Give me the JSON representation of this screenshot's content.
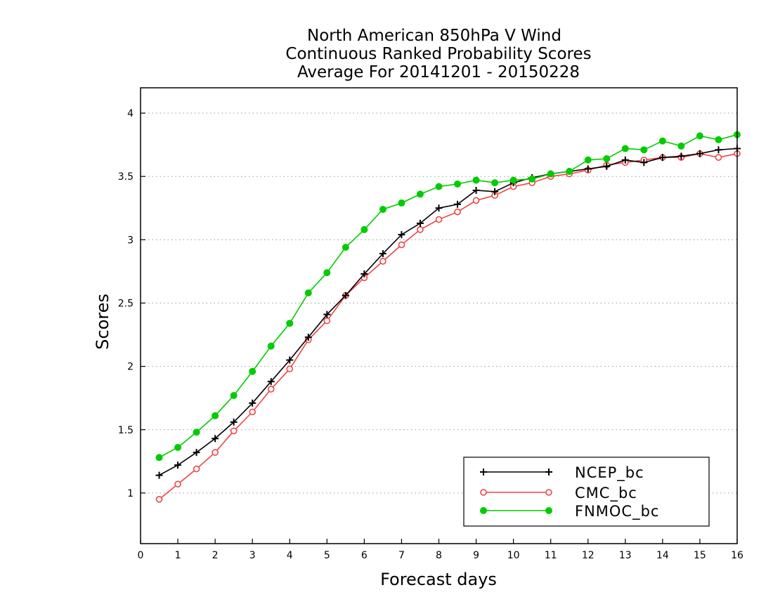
{
  "chart_data": {
    "type": "line",
    "title": [
      "North American 850hPa V Wind",
      "Continuous Ranked Probability Scores",
      "Average For 20141201 - 20150228"
    ],
    "xlabel": "Forecast days",
    "ylabel": "Scores",
    "xlim": [
      0,
      16
    ],
    "ylim": [
      0.6,
      4.2
    ],
    "xticks": [
      "0",
      "1",
      "2",
      "3",
      "4",
      "5",
      "6",
      "7",
      "8",
      "9",
      "10",
      "11",
      "12",
      "13",
      "14",
      "15",
      "16"
    ],
    "yticks": [
      "1",
      "1.5",
      "2",
      "2.5",
      "3",
      "3.5",
      "4"
    ],
    "grid": "horizontal dotted",
    "legend_position": "bottom-right",
    "series": [
      {
        "name": "NCEP_bc",
        "color": "#000000",
        "marker": "plus",
        "x": [
          0.5,
          1,
          1.5,
          2,
          2.5,
          3,
          3.5,
          4,
          4.5,
          5,
          5.5,
          6,
          6.5,
          7,
          7.5,
          8,
          8.5,
          9,
          9.5,
          10,
          10.5,
          11,
          11.5,
          12,
          12.5,
          13,
          13.5,
          14,
          14.5,
          15,
          15.5,
          16
        ],
        "y": [
          1.14,
          1.22,
          1.32,
          1.43,
          1.56,
          1.71,
          1.88,
          2.05,
          2.23,
          2.41,
          2.56,
          2.73,
          2.89,
          3.04,
          3.13,
          3.25,
          3.28,
          3.39,
          3.38,
          3.45,
          3.49,
          3.52,
          3.54,
          3.56,
          3.58,
          3.63,
          3.61,
          3.65,
          3.66,
          3.68,
          3.71,
          3.72
        ]
      },
      {
        "name": "CMC_bc",
        "color": "#ef4444",
        "marker": "open-circle",
        "x": [
          0.5,
          1,
          1.5,
          2,
          2.5,
          3,
          3.5,
          4,
          4.5,
          5,
          5.5,
          6,
          6.5,
          7,
          7.5,
          8,
          8.5,
          9,
          9.5,
          10,
          10.5,
          11,
          11.5,
          12,
          12.5,
          13,
          13.5,
          14,
          14.5,
          15,
          15.5,
          16
        ],
        "y": [
          0.95,
          1.07,
          1.19,
          1.32,
          1.49,
          1.64,
          1.82,
          1.98,
          2.21,
          2.36,
          2.56,
          2.7,
          2.83,
          2.96,
          3.08,
          3.16,
          3.22,
          3.31,
          3.35,
          3.42,
          3.45,
          3.5,
          3.52,
          3.55,
          3.59,
          3.61,
          3.63,
          3.65,
          3.65,
          3.68,
          3.65,
          3.68
        ]
      },
      {
        "name": "FNMOC_bc",
        "color": "#00cc00",
        "marker": "filled-circle",
        "x": [
          0.5,
          1,
          1.5,
          2,
          2.5,
          3,
          3.5,
          4,
          4.5,
          5,
          5.5,
          6,
          6.5,
          7,
          7.5,
          8,
          8.5,
          9,
          9.5,
          10,
          10.5,
          11,
          11.5,
          12,
          12.5,
          13,
          13.5,
          14,
          14.5,
          15,
          15.5,
          16
        ],
        "y": [
          1.28,
          1.36,
          1.48,
          1.61,
          1.77,
          1.96,
          2.16,
          2.34,
          2.58,
          2.74,
          2.94,
          3.08,
          3.24,
          3.29,
          3.36,
          3.42,
          3.44,
          3.47,
          3.45,
          3.47,
          3.48,
          3.52,
          3.54,
          3.63,
          3.64,
          3.72,
          3.71,
          3.78,
          3.74,
          3.82,
          3.79,
          3.83
        ]
      }
    ]
  }
}
